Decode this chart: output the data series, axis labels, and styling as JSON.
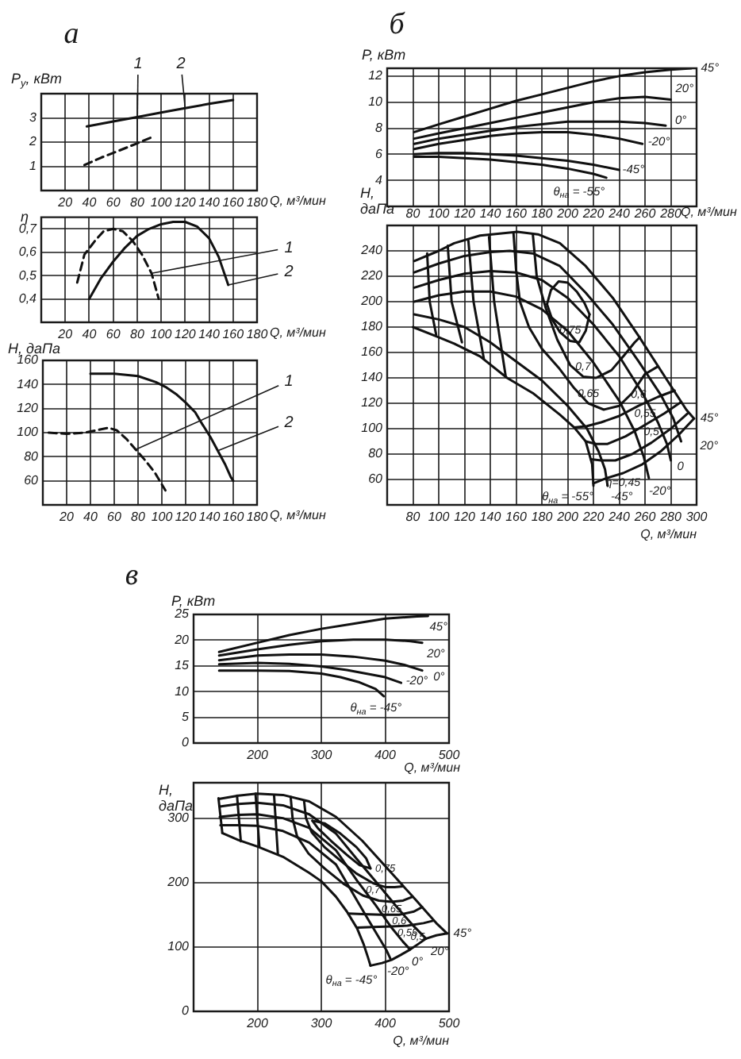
{
  "chart_data": [
    {
      "type": "line",
      "title": "а",
      "ylabel": "P$_{у}$, кВт",
      "xlabel": "Q, м³/мин",
      "xlim": [
        0,
        180
      ],
      "xticks": [
        20,
        40,
        60,
        80,
        100,
        120,
        140,
        160,
        180
      ],
      "ylim": [
        0,
        4
      ],
      "yticks": [
        1,
        2,
        3
      ],
      "grid": true,
      "series": [
        {
          "name": "1",
          "color": "#111111",
          "line_style": "dashed",
          "x": [
            36,
            50,
            65,
            80,
            94
          ],
          "values": [
            1.05,
            1.36,
            1.65,
            1.95,
            2.24
          ]
        },
        {
          "name": "2",
          "color": "#111111",
          "line_style": "solid",
          "x": [
            38,
            60,
            80,
            100,
            120,
            140,
            160
          ],
          "values": [
            2.65,
            2.85,
            3.03,
            3.22,
            3.4,
            3.58,
            3.74
          ]
        }
      ]
    },
    {
      "type": "line",
      "ylabel": "η",
      "xlabel": "Q, м³/мин",
      "xlim": [
        0,
        180
      ],
      "xticks": [
        20,
        40,
        60,
        80,
        100,
        120,
        140,
        160,
        180
      ],
      "ylim": [
        0.3,
        0.75
      ],
      "yticks": [
        {
          "value": 0.4,
          "label": "0,4"
        },
        {
          "value": 0.5,
          "label": "0,5"
        },
        {
          "value": 0.6,
          "label": "0,6"
        },
        {
          "value": 0.7,
          "label": "0,7"
        }
      ],
      "grid": true,
      "series": [
        {
          "name": "1",
          "color": "#111111",
          "line_style": "dashed",
          "x": [
            30,
            36,
            45,
            52,
            60,
            68,
            76,
            84,
            92,
            98
          ],
          "values": [
            0.47,
            0.59,
            0.65,
            0.69,
            0.7,
            0.69,
            0.65,
            0.59,
            0.51,
            0.4
          ]
        },
        {
          "name": "2",
          "color": "#111111",
          "line_style": "solid",
          "x": [
            40,
            50,
            60,
            70,
            80,
            90,
            100,
            110,
            120,
            130,
            140,
            148,
            156
          ],
          "values": [
            0.4,
            0.49,
            0.56,
            0.62,
            0.67,
            0.7,
            0.72,
            0.73,
            0.73,
            0.71,
            0.66,
            0.58,
            0.46
          ]
        }
      ]
    },
    {
      "type": "line",
      "ylabel": "H, даПа",
      "xlabel": "Q, м³/мин",
      "xlim": [
        0,
        180
      ],
      "xticks": [
        20,
        40,
        60,
        80,
        100,
        120,
        140,
        160,
        180
      ],
      "ylim": [
        40,
        160
      ],
      "yticks": [
        60,
        80,
        100,
        120,
        140,
        160
      ],
      "grid": true,
      "series": [
        {
          "name": "1",
          "color": "#111111",
          "line_style": "dashed",
          "x": [
            5,
            20,
            35,
            45,
            55,
            62,
            70,
            78,
            86,
            94,
            103
          ],
          "values": [
            100,
            99,
            100,
            102,
            104,
            102,
            95,
            86,
            77,
            67,
            52
          ]
        },
        {
          "name": "2",
          "color": "#111111",
          "line_style": "solid",
          "x": [
            40,
            60,
            80,
            95,
            103,
            112,
            120,
            128,
            134,
            141,
            147,
            153,
            158,
            160
          ],
          "values": [
            149,
            149,
            147,
            142,
            138,
            132,
            125,
            117,
            107,
            96,
            85,
            74,
            63,
            60
          ]
        }
      ]
    },
    {
      "type": "line",
      "title": "б",
      "ylabel": "P, кВт",
      "xlabel": "Q, м³/мин",
      "xlim": [
        60,
        300
      ],
      "xticks": [
        80,
        100,
        120,
        140,
        160,
        180,
        200,
        220,
        240,
        260,
        280
      ],
      "ylim": [
        2,
        12.6
      ],
      "yticks": [
        4,
        6,
        8,
        10,
        12
      ],
      "grid": true,
      "series": [
        {
          "name": "45°",
          "color": "#111111",
          "x": [
            81,
            100,
            120,
            140,
            160,
            180,
            200,
            220,
            240,
            260,
            280,
            296
          ],
          "values": [
            7.7,
            8.3,
            8.9,
            9.5,
            10.1,
            10.6,
            11.1,
            11.6,
            12,
            12.3,
            12.5,
            12.6
          ]
        },
        {
          "name": "20°",
          "color": "#111111",
          "x": [
            81,
            100,
            120,
            140,
            160,
            180,
            200,
            220,
            240,
            260,
            280
          ],
          "values": [
            7.2,
            7.6,
            8,
            8.4,
            8.8,
            9.2,
            9.6,
            10,
            10.3,
            10.4,
            10.2
          ]
        },
        {
          "name": "0°",
          "color": "#111111",
          "x": [
            81,
            100,
            120,
            140,
            160,
            180,
            200,
            220,
            240,
            260,
            276
          ],
          "values": [
            6.8,
            7.2,
            7.5,
            7.8,
            8.1,
            8.3,
            8.5,
            8.5,
            8.5,
            8.4,
            8.2
          ]
        },
        {
          "name": "-20°",
          "color": "#111111",
          "x": [
            81,
            100,
            120,
            140,
            160,
            180,
            200,
            220,
            240,
            258
          ],
          "values": [
            6.4,
            6.8,
            7.1,
            7.4,
            7.6,
            7.7,
            7.7,
            7.5,
            7.2,
            6.8
          ]
        },
        {
          "name": "-45°",
          "color": "#111111",
          "x": [
            81,
            100,
            120,
            140,
            160,
            180,
            200,
            220,
            240
          ],
          "values": [
            6,
            6.1,
            6.1,
            6,
            5.9,
            5.7,
            5.5,
            5.2,
            4.8
          ]
        },
        {
          "name": "θ$_{на}$ = -55°",
          "color": "#111111",
          "x": [
            81,
            100,
            120,
            140,
            160,
            180,
            200,
            220,
            230
          ],
          "values": [
            5.8,
            5.8,
            5.7,
            5.6,
            5.4,
            5.2,
            4.9,
            4.5,
            4.2
          ]
        }
      ]
    },
    {
      "type": "line",
      "ylabel": "H, даПа",
      "xlabel": "Q, м³/мин",
      "xlim": [
        60,
        300
      ],
      "xticks": [
        80,
        100,
        120,
        140,
        160,
        180,
        200,
        220,
        240,
        260,
        280,
        300
      ],
      "ylim": [
        40,
        260
      ],
      "yticks": [
        60,
        80,
        100,
        120,
        140,
        160,
        180,
        200,
        220,
        240
      ],
      "grid": true,
      "series": [
        {
          "name": "45°",
          "color": "#111111",
          "x": [
            81,
            100,
            112,
            132,
            161,
            177,
            194,
            214,
            235,
            255,
            276,
            292,
            298
          ],
          "values": [
            232,
            240,
            246,
            252,
            255,
            253,
            246,
            228,
            203,
            173,
            140,
            115,
            108
          ]
        },
        {
          "name": "20°",
          "color": "#111111",
          "x": [
            81,
            100,
            120,
            140,
            155,
            173,
            194,
            214,
            235,
            255,
            272,
            282,
            288
          ],
          "values": [
            223,
            230,
            236,
            239,
            240,
            238,
            228,
            207,
            182,
            153,
            127,
            108,
            90
          ]
        },
        {
          "name": "0",
          "color": "#111111",
          "x": [
            81,
            100,
            120,
            140,
            160,
            180,
            200,
            220,
            240,
            258,
            270,
            277,
            280
          ],
          "values": [
            211,
            217,
            222,
            224,
            223,
            217,
            203,
            182,
            157,
            128,
            105,
            88,
            75
          ]
        },
        {
          "name": "-20°",
          "color": "#111111",
          "x": [
            81,
            100,
            120,
            140,
            160,
            180,
            200,
            220,
            240,
            252,
            259,
            263
          ],
          "values": [
            200,
            205,
            208,
            208,
            204,
            194,
            177,
            152,
            122,
            98,
            78,
            61
          ]
        },
        {
          "name": "-45°",
          "color": "#111111",
          "x": [
            81,
            100,
            120,
            140,
            160,
            180,
            200,
            215,
            224,
            229,
            231
          ],
          "values": [
            190,
            186,
            180,
            168,
            153,
            138,
            118,
            100,
            82,
            68,
            55
          ]
        },
        {
          "name": "θ$_{на}$ = -55°",
          "color": "#111111",
          "x": [
            80,
            100,
            112,
            132,
            153,
            173,
            194,
            205,
            214,
            219,
            220
          ],
          "values": [
            180,
            172,
            167,
            157,
            140,
            128,
            111,
            101,
            90,
            72,
            55
          ]
        },
        {
          "name": "0,75",
          "color": "#111111",
          "x": [
            184,
            188,
            194,
            202,
            209,
            214,
            217
          ],
          "values": [
            198,
            186,
            176,
            169,
            168,
            177,
            190
          ]
        },
        {
          "color": "#111111",
          "x": [
            184,
            187,
            193,
            200,
            207,
            213,
            217
          ],
          "values": [
            198,
            209,
            216,
            215,
            208,
            199,
            190
          ]
        },
        {
          "name": "0,7",
          "color": "#111111",
          "x": [
            173,
            176,
            183,
            192,
            202,
            212,
            222,
            234,
            244,
            252,
            256
          ],
          "values": [
            253,
            220,
            195,
            170,
            150,
            141,
            140,
            146,
            158,
            168,
            172
          ]
        },
        {
          "name": "0,65",
          "color": "#111111",
          "x": [
            158,
            160,
            163,
            170,
            180,
            193,
            205,
            216,
            228,
            240,
            250,
            260,
            270
          ],
          "values": [
            254,
            225,
            200,
            180,
            163,
            148,
            132,
            120,
            115,
            118,
            128,
            143,
            149
          ]
        },
        {
          "name": "0,6",
          "color": "#111111",
          "x": [
            205,
            215,
            226,
            240,
            255,
            270,
            283
          ],
          "values": [
            101,
            102,
            105,
            110,
            118,
            125,
            130
          ]
        },
        {
          "color": "#111111",
          "x": [
            139,
            143,
            152
          ],
          "values": [
            251,
            200,
            141
          ]
        },
        {
          "name": "0,55",
          "color": "#111111",
          "x": [
            214,
            222,
            231,
            245,
            260,
            275,
            288
          ],
          "values": [
            90,
            88,
            88,
            94,
            103,
            112,
            121
          ]
        },
        {
          "color": "#111111",
          "x": [
            123,
            127,
            135
          ],
          "values": [
            248,
            200,
            155
          ]
        },
        {
          "name": "0,5",
          "color": "#111111",
          "x": [
            218,
            226,
            237,
            250,
            265,
            280,
            293
          ],
          "values": [
            76,
            75,
            75,
            80,
            89,
            100,
            112
          ]
        },
        {
          "color": "#111111",
          "x": [
            107,
            110,
            118
          ],
          "values": [
            244,
            200,
            168
          ]
        },
        {
          "name": "η=0,45",
          "color": "#111111",
          "x": [
            220,
            230,
            243,
            258,
            272,
            286,
            298
          ],
          "values": [
            57,
            61,
            65,
            72,
            82,
            95,
            108
          ]
        },
        {
          "color": "#111111",
          "x": [
            91,
            93,
            98
          ],
          "values": [
            238,
            200,
            174
          ]
        }
      ]
    },
    {
      "type": "line",
      "title": "в",
      "ylabel": "P, кВт",
      "xlabel": "Q, м³/мин",
      "xlim": [
        100,
        500
      ],
      "xticks": [
        200,
        300,
        400,
        500
      ],
      "ylim": [
        0,
        25
      ],
      "yticks": [
        0,
        5,
        10,
        15,
        20,
        25
      ],
      "grid": true,
      "series": [
        {
          "name": "45°",
          "color": "#111111",
          "x": [
            140,
            200,
            250,
            300,
            350,
            400,
            450,
            467
          ],
          "values": [
            17.7,
            19.5,
            21,
            22.2,
            23.2,
            24.2,
            24.6,
            24.7
          ]
        },
        {
          "name": "20°",
          "color": "#111111",
          "x": [
            140,
            200,
            250,
            300,
            350,
            400,
            440,
            458
          ],
          "values": [
            17,
            18.2,
            19.1,
            19.8,
            20.1,
            20.1,
            19.8,
            19.5
          ]
        },
        {
          "name": "0°",
          "color": "#111111",
          "x": [
            140,
            200,
            250,
            300,
            350,
            400,
            430,
            458
          ],
          "values": [
            16.1,
            17,
            17.2,
            17.2,
            16.8,
            16,
            15.2,
            14.1
          ]
        },
        {
          "name": "-20°",
          "color": "#111111",
          "x": [
            140,
            200,
            250,
            300,
            340,
            370,
            400,
            425
          ],
          "values": [
            15.3,
            15.6,
            15.4,
            14.9,
            14.2,
            13.5,
            12.8,
            11.7
          ]
        },
        {
          "name": "θ$_{на}$ = -45°",
          "color": "#111111",
          "x": [
            140,
            200,
            250,
            300,
            330,
            360,
            385,
            398
          ],
          "values": [
            14.1,
            14.1,
            14,
            13.5,
            12.8,
            11.8,
            10.5,
            9.1
          ]
        }
      ]
    },
    {
      "type": "line",
      "ylabel": "H, даПа",
      "xlabel": "Q, м³/мин",
      "xlim": [
        100,
        500
      ],
      "xticks": [
        200,
        300,
        400,
        500
      ],
      "ylim": [
        0,
        355
      ],
      "yticks": [
        0,
        100,
        200,
        300
      ],
      "grid": true,
      "series": [
        {
          "name": "45°",
          "color": "#111111",
          "x": [
            141,
            170,
            199,
            240,
            281,
            323,
            364,
            406,
            447,
            480,
            497
          ],
          "values": [
            330,
            335,
            338,
            336,
            326,
            302,
            265,
            219,
            174,
            137,
            121
          ]
        },
        {
          "name": "20°",
          "color": "#111111",
          "x": [
            141,
            170,
            200,
            240,
            281,
            323,
            356,
            390,
            420,
            445,
            464
          ],
          "values": [
            318,
            322,
            324,
            320,
            306,
            276,
            236,
            196,
            160,
            132,
            113
          ]
        },
        {
          "name": "0°",
          "color": "#111111",
          "x": [
            141,
            170,
            200,
            240,
            281,
            323,
            356,
            385,
            410,
            428,
            439
          ],
          "values": [
            302,
            305,
            306,
            300,
            285,
            250,
            203,
            165,
            130,
            108,
            96
          ]
        },
        {
          "name": "-20°",
          "color": "#111111",
          "x": [
            142,
            170,
            200,
            240,
            281,
            323,
            356,
            375,
            393,
            402,
            408
          ],
          "values": [
            289,
            289,
            288,
            280,
            262,
            228,
            172,
            140,
            110,
            95,
            82
          ]
        },
        {
          "name": "θ$_{на}$ = -45°",
          "color": "#111111",
          "x": [
            145,
            170,
            200,
            240,
            281,
            300,
            323,
            340,
            356,
            366,
            373,
            377
          ],
          "values": [
            277,
            266,
            256,
            240,
            215,
            202,
            178,
            155,
            129,
            105,
            84,
            71
          ]
        },
        {
          "name": "0,75",
          "color": "#111111",
          "x": [
            286,
            295,
            315,
            340,
            360,
            377
          ],
          "values": [
            296,
            284,
            265,
            243,
            227,
            222
          ]
        },
        {
          "color": "#111111",
          "x": [
            286,
            305,
            330,
            355,
            370,
            377
          ],
          "values": [
            296,
            292,
            276,
            255,
            238,
            222
          ]
        },
        {
          "name": "0,7",
          "color": "#111111",
          "x": [
            273,
            276,
            285,
            305,
            330,
            355,
            381,
            400,
            415,
            428
          ],
          "values": [
            327,
            300,
            278,
            255,
            234,
            214,
            199,
            193,
            193,
            194
          ]
        },
        {
          "name": "0,65",
          "color": "#111111",
          "x": [
            252,
            255,
            262,
            280,
            305,
            335,
            365,
            390,
            410,
            428,
            443
          ],
          "values": [
            333,
            300,
            272,
            245,
            222,
            198,
            180,
            172,
            170,
            172,
            178
          ]
        },
        {
          "name": "0,6",
          "color": "#111111",
          "x": [
            342,
            365,
            395,
            422,
            445,
            458
          ],
          "values": [
            152,
            151,
            150,
            150,
            155,
            162
          ]
        },
        {
          "color": "#111111",
          "x": [
            226,
            232
          ],
          "values": [
            336,
            244
          ]
        },
        {
          "name": "0,55",
          "color": "#111111",
          "x": [
            356,
            380,
            410,
            435,
            460,
            476
          ],
          "values": [
            130,
            131,
            132,
            133,
            137,
            141
          ]
        },
        {
          "color": "#111111",
          "x": [
            197,
            203
          ],
          "values": [
            338,
            256
          ]
        },
        {
          "name": "0,5",
          "color": "#111111",
          "x": [
            377,
            395,
            410,
            425,
            439,
            451,
            464,
            480,
            497
          ],
          "values": [
            71,
            75,
            80,
            88,
            96,
            104,
            113,
            118,
            121
          ]
        },
        {
          "color": "#111111",
          "x": [
            168,
            174
          ],
          "values": [
            335,
            264
          ]
        },
        {
          "color": "#111111",
          "x": [
            139,
            145
          ],
          "values": [
            331,
            277
          ]
        }
      ]
    }
  ]
}
